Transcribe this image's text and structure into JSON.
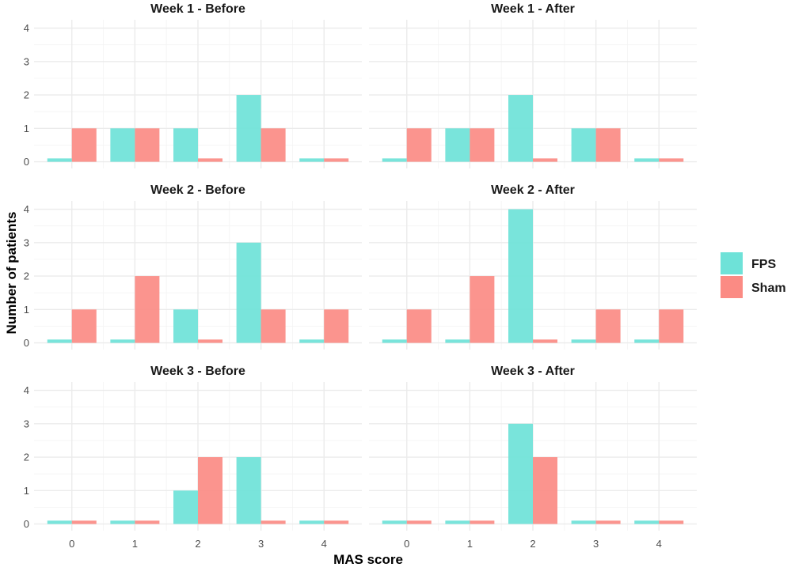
{
  "chart_data": {
    "type": "bar",
    "layout": "faceted grouped bar chart, 3 rows x 2 columns",
    "xlabel": "MAS score",
    "ylabel": "Number of patients",
    "categories": [
      "0",
      "1",
      "2",
      "3",
      "4"
    ],
    "yticks": [
      "0",
      "1",
      "2",
      "3",
      "4"
    ],
    "ylim": [
      0,
      4
    ],
    "legend": {
      "placement": "right",
      "entries": [
        {
          "name": "FPS",
          "color": "#6ee2d8"
        },
        {
          "name": "Sham",
          "color": "#fb8b84"
        }
      ]
    },
    "note": "zero counts are drawn as thin stubs",
    "zero_stub_height": 0.1,
    "panels": [
      {
        "title": "Week 1 - Before",
        "series": [
          {
            "name": "FPS",
            "values": [
              0,
              1,
              1,
              2,
              0
            ]
          },
          {
            "name": "Sham",
            "values": [
              1,
              1,
              0,
              1,
              0
            ]
          }
        ]
      },
      {
        "title": "Week 1 - After",
        "series": [
          {
            "name": "FPS",
            "values": [
              0,
              1,
              2,
              1,
              0
            ]
          },
          {
            "name": "Sham",
            "values": [
              1,
              1,
              0,
              1,
              0
            ]
          }
        ]
      },
      {
        "title": "Week 2 - Before",
        "series": [
          {
            "name": "FPS",
            "values": [
              0,
              0,
              1,
              3,
              0
            ]
          },
          {
            "name": "Sham",
            "values": [
              1,
              2,
              0,
              1,
              1
            ]
          }
        ]
      },
      {
        "title": "Week 2 - After",
        "series": [
          {
            "name": "FPS",
            "values": [
              0,
              0,
              4,
              0,
              0
            ]
          },
          {
            "name": "Sham",
            "values": [
              1,
              2,
              0,
              1,
              1
            ]
          }
        ]
      },
      {
        "title": "Week 3 - Before",
        "series": [
          {
            "name": "FPS",
            "values": [
              0,
              0,
              1,
              2,
              0
            ]
          },
          {
            "name": "Sham",
            "values": [
              0,
              0,
              2,
              0,
              0
            ]
          }
        ]
      },
      {
        "title": "Week 3 - After",
        "series": [
          {
            "name": "FPS",
            "values": [
              0,
              0,
              3,
              0,
              0
            ]
          },
          {
            "name": "Sham",
            "values": [
              0,
              0,
              2,
              0,
              0
            ]
          }
        ]
      }
    ]
  }
}
